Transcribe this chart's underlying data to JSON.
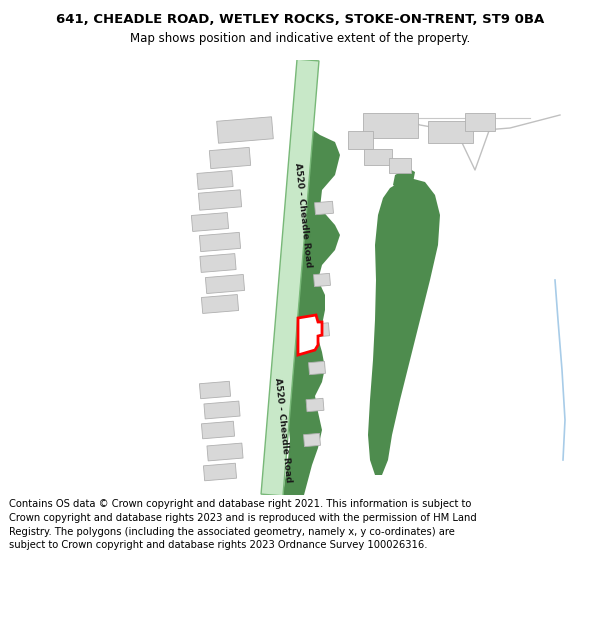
{
  "title_line1": "641, CHEADLE ROAD, WETLEY ROCKS, STOKE-ON-TRENT, ST9 0BA",
  "title_line2": "Map shows position and indicative extent of the property.",
  "copyright_text": "Contains OS data © Crown copyright and database right 2021. This information is subject to Crown copyright and database rights 2023 and is reproduced with the permission of HM Land Registry. The polygons (including the associated geometry, namely x, y co-ordinates) are subject to Crown copyright and database rights 2023 Ordnance Survey 100026316.",
  "bg_color": "#ffffff",
  "map_bg": "#f2f2f2",
  "road_fill": "#c8e8c8",
  "road_edge": "#78b878",
  "green_fill": "#4e8c4e",
  "bldg_fill": "#d8d8d8",
  "bldg_edge": "#b0b0b0",
  "plot_fill": "#ffffff",
  "plot_edge": "#ff0000",
  "road_label": "A520 - Cheadle Road",
  "stream_color": "#a8cce8",
  "gray_road_fill": "#e0e0e0",
  "gray_road_edge": "#c0c0c0"
}
